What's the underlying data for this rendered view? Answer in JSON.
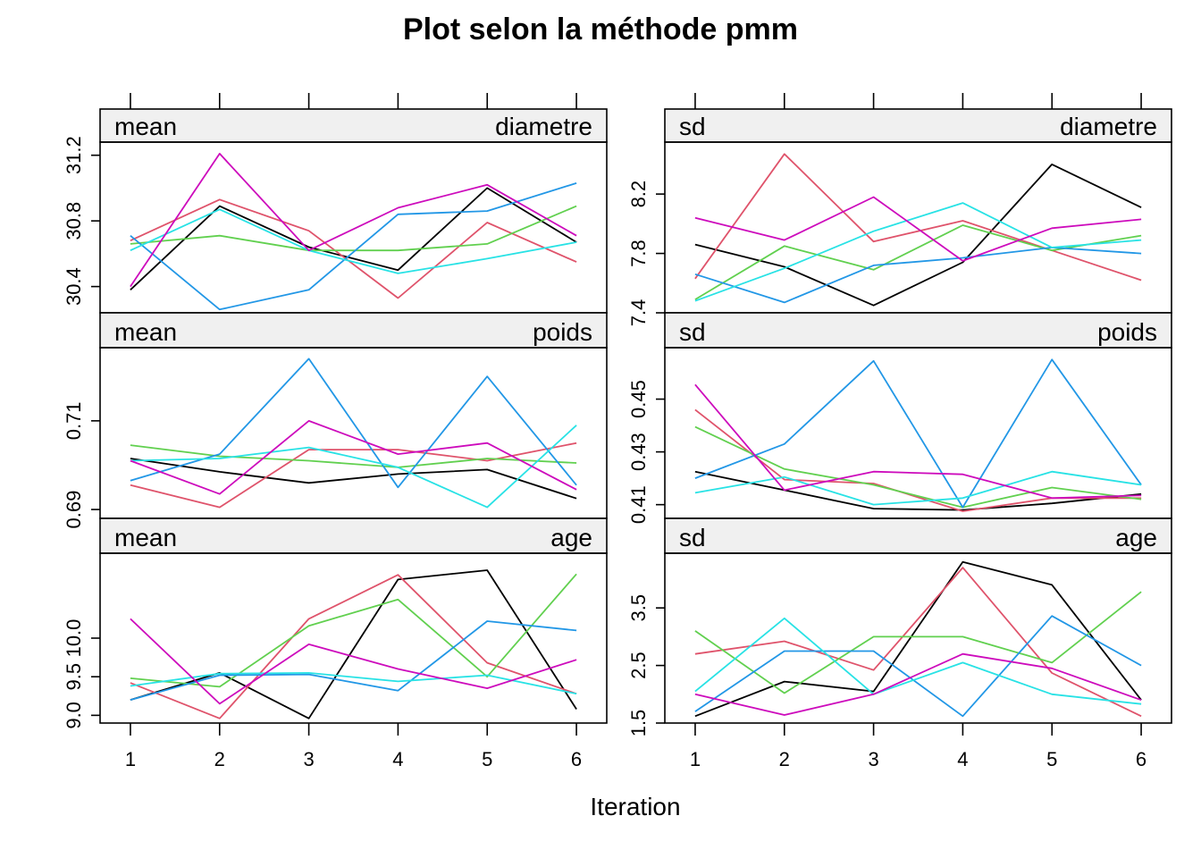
{
  "chart_data": {
    "type": "line",
    "title": "Plot selon la méthode pmm",
    "xlabel": "Iteration",
    "x": [
      1,
      2,
      3,
      4,
      5,
      6
    ],
    "x_ticks": [
      "1",
      "2",
      "3",
      "4",
      "5",
      "6"
    ],
    "series_colors": [
      "#000000",
      "#DF536B",
      "#61D04F",
      "#2297E6",
      "#28E2E5",
      "#CD0BBC"
    ],
    "panels": [
      {
        "stat": "mean",
        "variable": "diametre",
        "ylim": [
          30.24,
          31.28
        ],
        "y_ticks": [
          30.4,
          30.8,
          31.2
        ],
        "y_tick_labels": [
          "30.4",
          "30.8",
          "31.2"
        ],
        "series": [
          [
            30.38,
            30.89,
            30.64,
            30.5,
            31.0,
            30.67
          ],
          [
            30.68,
            30.93,
            30.74,
            30.33,
            30.79,
            30.55
          ],
          [
            30.66,
            30.71,
            30.62,
            30.62,
            30.66,
            30.89
          ],
          [
            30.71,
            30.26,
            30.38,
            30.84,
            30.86,
            31.03
          ],
          [
            30.62,
            30.87,
            30.62,
            30.48,
            30.57,
            30.67
          ],
          [
            30.4,
            31.21,
            30.62,
            30.88,
            31.02,
            30.71
          ]
        ]
      },
      {
        "stat": "sd",
        "variable": "diametre",
        "ylim": [
          7.4,
          8.55
        ],
        "y_ticks": [
          7.4,
          7.8,
          8.2
        ],
        "y_tick_labels": [
          "7.4",
          "7.8",
          "8.2"
        ],
        "series": [
          [
            7.86,
            7.71,
            7.45,
            7.74,
            8.4,
            8.11
          ],
          [
            7.63,
            8.47,
            7.88,
            8.02,
            7.82,
            7.62
          ],
          [
            7.49,
            7.85,
            7.69,
            7.99,
            7.82,
            7.92
          ],
          [
            7.66,
            7.47,
            7.72,
            7.77,
            7.84,
            7.8
          ],
          [
            7.48,
            7.7,
            7.95,
            8.14,
            7.84,
            7.89
          ],
          [
            8.04,
            7.89,
            8.18,
            7.75,
            7.97,
            8.03
          ]
        ]
      },
      {
        "stat": "mean",
        "variable": "poids",
        "ylim": [
          0.688,
          0.7265
        ],
        "y_ticks": [
          0.69,
          0.71
        ],
        "y_tick_labels": [
          "0.69",
          "0.71"
        ],
        "series": [
          [
            0.7015,
            0.6985,
            0.696,
            0.698,
            0.699,
            0.6925
          ],
          [
            0.6955,
            0.6905,
            0.7035,
            0.7035,
            0.701,
            0.705
          ],
          [
            0.7045,
            0.702,
            0.701,
            0.6995,
            0.7015,
            0.7005
          ],
          [
            0.6965,
            0.7025,
            0.724,
            0.695,
            0.72,
            0.6955
          ],
          [
            0.701,
            0.7015,
            0.704,
            0.6995,
            0.6905,
            0.709
          ],
          [
            0.701,
            0.6935,
            0.71,
            0.7025,
            0.705,
            0.6945
          ]
        ]
      },
      {
        "stat": "sd",
        "variable": "poids",
        "ylim": [
          0.4048,
          0.4695
        ],
        "y_ticks": [
          0.41,
          0.43,
          0.45
        ],
        "y_tick_labels": [
          "0.41",
          "0.43",
          "0.45"
        ],
        "series": [
          [
            0.4225,
            0.4155,
            0.4085,
            0.408,
            0.4105,
            0.414
          ],
          [
            0.446,
            0.4195,
            0.418,
            0.4075,
            0.4125,
            0.4125
          ],
          [
            0.4395,
            0.4235,
            0.4175,
            0.409,
            0.4165,
            0.412
          ],
          [
            0.42,
            0.433,
            0.4645,
            0.409,
            0.465,
            0.4175
          ],
          [
            0.4145,
            0.4205,
            0.41,
            0.4125,
            0.4225,
            0.4175
          ],
          [
            0.4555,
            0.4155,
            0.4225,
            0.4215,
            0.4125,
            0.4135
          ]
        ]
      },
      {
        "stat": "mean",
        "variable": "age",
        "ylim": [
          8.9,
          11.1
        ],
        "y_ticks": [
          9.0,
          9.5,
          10.0
        ],
        "y_tick_labels": [
          "9.0",
          "9.5",
          "10.0"
        ],
        "series": [
          [
            9.2,
            9.55,
            8.96,
            10.76,
            10.88,
            9.08
          ],
          [
            9.42,
            8.96,
            10.25,
            10.82,
            9.68,
            9.28
          ],
          [
            9.48,
            9.37,
            10.16,
            10.5,
            9.5,
            10.83
          ],
          [
            9.2,
            9.52,
            9.53,
            9.32,
            10.22,
            10.1
          ],
          [
            9.38,
            9.54,
            9.55,
            9.44,
            9.52,
            9.28
          ],
          [
            10.25,
            9.15,
            9.92,
            9.6,
            9.35,
            9.72
          ]
        ]
      },
      {
        "stat": "sd",
        "variable": "age",
        "ylim": [
          1.5,
          4.45
        ],
        "y_ticks": [
          1.5,
          2.5,
          3.5
        ],
        "y_tick_labels": [
          "1.5",
          "2.5",
          "3.5"
        ],
        "series": [
          [
            1.62,
            2.22,
            2.05,
            4.3,
            3.9,
            1.9
          ],
          [
            2.7,
            2.92,
            2.42,
            4.2,
            2.37,
            1.62
          ],
          [
            3.1,
            2.02,
            3.0,
            3.0,
            2.55,
            3.78
          ],
          [
            1.7,
            2.75,
            2.75,
            1.62,
            3.36,
            2.5
          ],
          [
            2.05,
            3.32,
            2.0,
            2.55,
            2.0,
            1.83
          ],
          [
            2.0,
            1.64,
            2.0,
            2.7,
            2.45,
            1.9
          ]
        ]
      }
    ]
  }
}
